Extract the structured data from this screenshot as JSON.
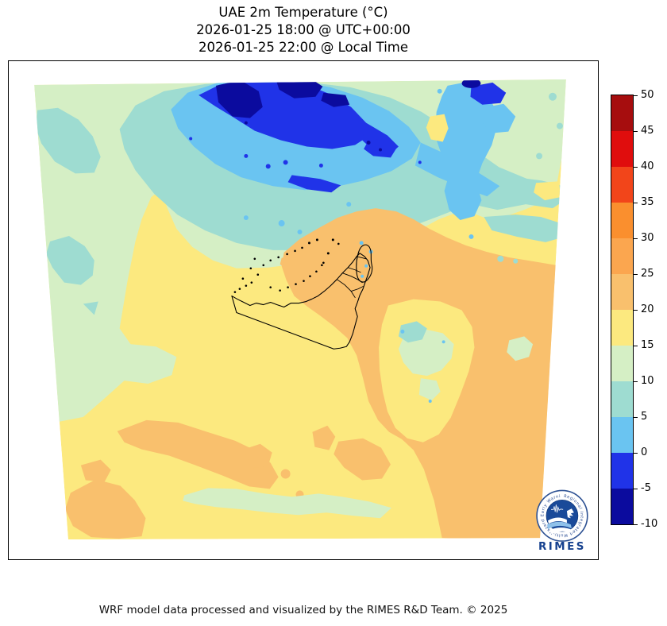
{
  "title": {
    "line1": "UAE 2m Temperature (°C)",
    "line2": "2026-01-25 18:00 @ UTC+00:00",
    "line3": "2026-01-25 22:00 @ Local Time"
  },
  "footer": {
    "credit": "WRF model data processed and visualized by the RIMES R&D Team. © 2025"
  },
  "colorbar": {
    "tick_labels_top_to_bottom": [
      "50",
      "45",
      "40",
      "35",
      "30",
      "25",
      "20",
      "15",
      "10",
      "5",
      "0",
      "-5",
      "-10"
    ],
    "bands_low_to_high": [
      {
        "range": "-10 to -5",
        "color": "#0b0b9e"
      },
      {
        "range": "-5 to 0",
        "color": "#2033e8"
      },
      {
        "range": "0 to 5",
        "color": "#6ac4f1"
      },
      {
        "range": "5 to 10",
        "color": "#9edcd1"
      },
      {
        "range": "10 to 15",
        "color": "#d5efc5"
      },
      {
        "range": "15 to 20",
        "color": "#fce97f"
      },
      {
        "range": "20 to 25",
        "color": "#f9c06d"
      },
      {
        "range": "25 to 30",
        "color": "#fba64f"
      },
      {
        "range": "30 to 35",
        "color": "#fa8f2e"
      },
      {
        "range": "35 to 40",
        "color": "#f2451a"
      },
      {
        "range": "40 to 45",
        "color": "#e00d0d"
      },
      {
        "range": "45 to 50",
        "color": "#a60d0e"
      }
    ]
  },
  "logo": {
    "name": "RIMES",
    "ring_text": "Regional Integrated Multi-Hazard Early Warning System",
    "brand_blue": "#1a4a99",
    "text_blue": "#16418f"
  },
  "chart_data": {
    "type": "heatmap",
    "title": "UAE 2m Temperature (°C)",
    "colorbar_ticks": [
      -10,
      -5,
      0,
      5,
      10,
      15,
      20,
      25,
      30,
      35,
      40,
      45,
      50
    ],
    "colorbar_range": [
      -10,
      50
    ],
    "legend_position": "right"
  }
}
